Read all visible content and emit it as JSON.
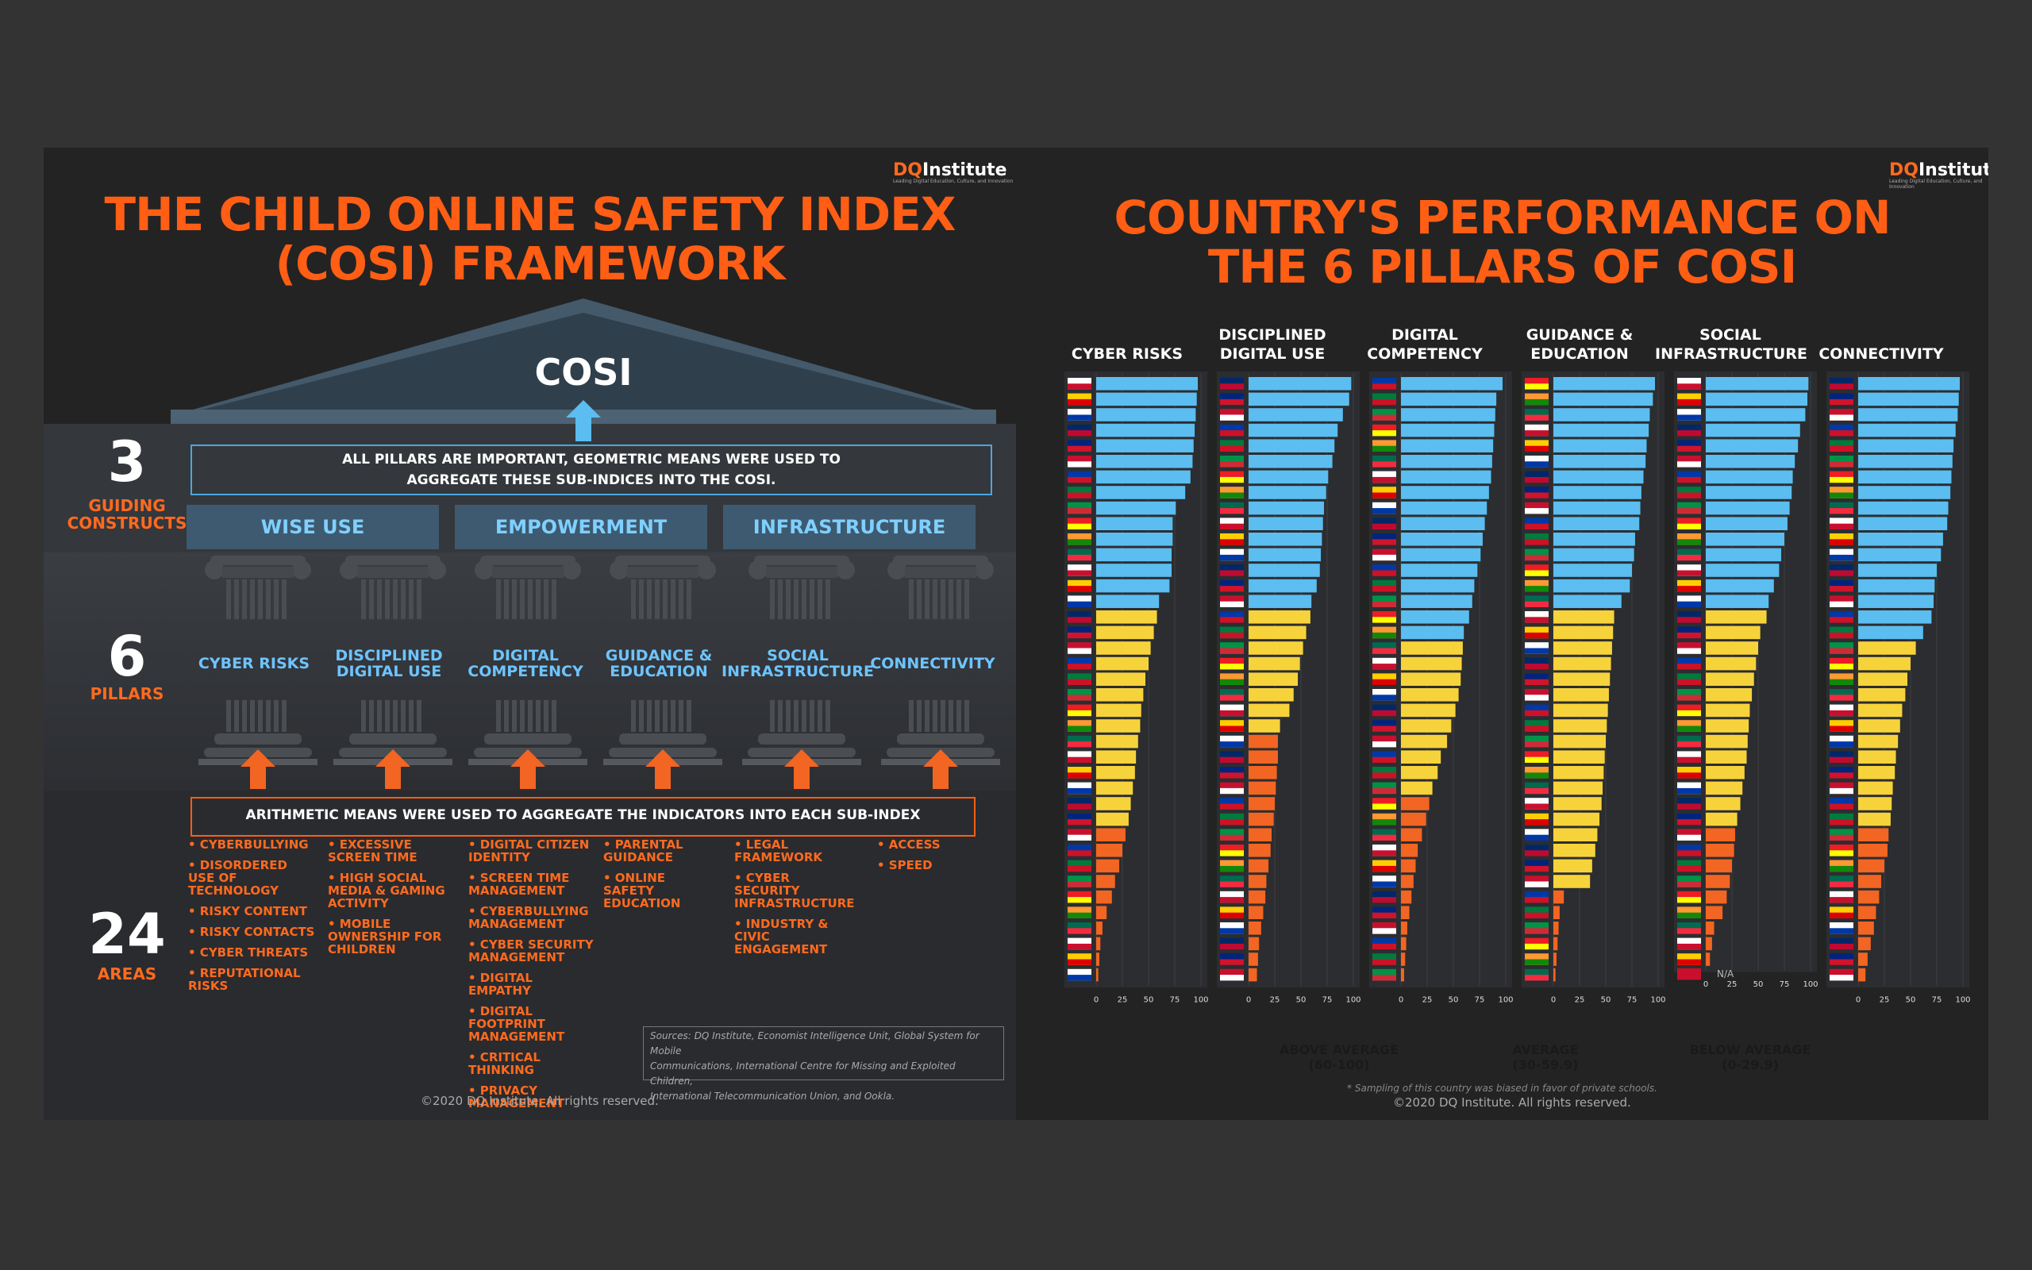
{
  "left": {
    "logo": {
      "brand": "DQ",
      "name": "Institute",
      "tagline": "Leading Digital Education, Culture, and Innovation"
    },
    "title_line1": "THE CHILD ONLINE SAFETY INDEX",
    "title_line2": "(COSI) FRAMEWORK",
    "roof_label": "COSI",
    "constructs": {
      "number": "3",
      "label_line1": "GUIDING",
      "label_line2": "CONSTRUCTS"
    },
    "pillars_count": {
      "number": "6",
      "label": "PILLARS"
    },
    "areas_count": {
      "number": "24",
      "label": "AREAS"
    },
    "top_note_line1": "ALL PILLARS ARE IMPORTANT, GEOMETRIC MEANS WERE USED TO",
    "top_note_line2": "AGGREGATE THESE SUB-INDICES INTO THE COSI.",
    "construct_names": [
      "WISE USE",
      "EMPOWERMENT",
      "INFRASTRUCTURE"
    ],
    "pillar_names": [
      [
        "CYBER RISKS",
        ""
      ],
      [
        "DISCIPLINED",
        "DIGITAL USE"
      ],
      [
        "DIGITAL",
        "COMPETENCY"
      ],
      [
        "GUIDANCE &",
        "EDUCATION"
      ],
      [
        "SOCIAL",
        "INFRASTRUCTURE"
      ],
      [
        "CONNECTIVITY",
        ""
      ]
    ],
    "bottom_note": "ARITHMETIC MEANS WERE USED TO AGGREGATE THE INDICATORS INTO EACH SUB-INDEX",
    "areas": [
      [
        "• CYBERBULLYING",
        "• DISORDERED USE OF TECHNOLOGY",
        "• RISKY CONTENT",
        "• RISKY CONTACTS",
        "• CYBER THREATS",
        "• REPUTATIONAL RISKS"
      ],
      [
        "• EXCESSIVE SCREEN TIME",
        "• HIGH SOCIAL MEDIA & GAMING ACTIVITY",
        "• MOBILE OWNERSHIP FOR CHILDREN"
      ],
      [
        "• DIGITAL CITIZEN IDENTITY",
        "• SCREEN TIME MANAGEMENT",
        "• CYBERBULLYING MANAGEMENT",
        "• CYBER SECURITY MANAGEMENT",
        "• DIGITAL EMPATHY",
        "• DIGITAL FOOTPRINT MANAGEMENT",
        "• CRITICAL THINKING",
        "• PRIVACY MANAGEMENT"
      ],
      [
        "• PARENTAL GUIDANCE",
        "• ONLINE SAFETY EDUCATION"
      ],
      [
        "• LEGAL FRAMEWORK",
        "• CYBER SECURITY INFRASTRUCTURE",
        "• INDUSTRY & CIVIC ENGAGEMENT"
      ],
      [
        "• ACCESS",
        "• SPEED"
      ]
    ],
    "sources_line1": "Sources: DQ Institute, Economist Intelligence Unit, Global System for Mobile",
    "sources_line2": "Communications, International Centre for Missing and Exploited Children,",
    "sources_line3": "International Telecommunication Union, and Ookla.",
    "copyright": "©2020 DQ Institute. All rights reserved."
  },
  "right": {
    "logo": {
      "brand": "DQ",
      "name": "Institute",
      "tagline": "Leading Digital Education, Culture, and Innovation"
    },
    "title_line1": "COUNTRY'S PERFORMANCE ON",
    "title_line2": "THE 6 PILLARS OF COSI",
    "legend": [
      {
        "line1": "ABOVE AVERAGE",
        "line2": "(60-100)",
        "color": "#5bbdf0"
      },
      {
        "line1": "AVERAGE",
        "line2": "(30-59.9)",
        "color": "#f7d33b"
      },
      {
        "line1": "BELOW AVERAGE",
        "line2": "(0-29.9)",
        "color": "#f26522"
      }
    ],
    "footnote": "* Sampling of this country was biased in favor of private schools.",
    "copyright": "©2020 DQ Institute. All rights reserved."
  },
  "colors": {
    "above": "#5bbdf0",
    "average": "#f7d33b",
    "below": "#f26522",
    "title": "#ff5e14"
  },
  "chart_data": [
    {
      "type": "bar",
      "title": "CYBER RISKS",
      "title_lines": [
        "CYBER RISKS"
      ],
      "xlim": [
        0,
        100
      ],
      "ticks": [
        0,
        25,
        50,
        75,
        100
      ],
      "values": [
        97,
        96,
        95,
        94,
        93,
        92,
        90,
        85,
        76,
        73,
        73,
        72,
        72,
        70,
        60,
        58,
        55,
        52,
        50,
        47,
        45,
        43,
        42,
        40,
        38,
        37,
        35,
        33,
        31,
        28,
        25,
        22,
        18,
        15,
        10,
        6,
        4,
        3,
        2
      ]
    },
    {
      "type": "bar",
      "title": "DISCIPLINED DIGITAL USE",
      "title_lines": [
        "DISCIPLINED",
        "DIGITAL USE"
      ],
      "xlim": [
        0,
        100
      ],
      "ticks": [
        0,
        25,
        50,
        75,
        100
      ],
      "values": [
        98,
        96,
        90,
        85,
        82,
        80,
        76,
        74,
        72,
        71,
        70,
        69,
        68,
        65,
        60,
        59,
        55,
        52,
        49,
        47,
        43,
        39,
        30,
        28,
        28,
        27,
        26,
        25,
        24,
        22,
        21,
        19,
        17,
        16,
        14,
        12,
        10,
        9,
        8
      ]
    },
    {
      "type": "bar",
      "title": "DIGITAL COMPETENCY",
      "title_lines": [
        "DIGITAL",
        "COMPETENCY"
      ],
      "xlim": [
        0,
        100
      ],
      "ticks": [
        0,
        25,
        50,
        75,
        100
      ],
      "values": [
        97,
        91,
        90,
        89,
        88,
        87,
        86,
        84,
        82,
        80,
        78,
        76,
        73,
        70,
        68,
        65,
        60,
        59,
        58,
        57,
        55,
        52,
        48,
        44,
        38,
        35,
        30,
        27,
        24,
        20,
        16,
        14,
        12,
        10,
        8,
        6,
        5,
        4,
        3
      ]
    },
    {
      "type": "bar",
      "title": "GUIDANCE & EDUCATION",
      "title_lines": [
        "GUIDANCE &",
        "EDUCATION"
      ],
      "xlim": [
        0,
        100
      ],
      "ticks": [
        0,
        25,
        50,
        75,
        100
      ],
      "values": [
        97,
        95,
        92,
        91,
        89,
        88,
        86,
        84,
        83,
        82,
        78,
        77,
        75,
        73,
        65,
        58,
        57,
        56,
        55,
        54,
        53,
        52,
        51,
        50,
        49,
        48,
        47,
        46,
        44,
        42,
        40,
        37,
        35,
        10,
        6,
        5,
        4,
        3,
        2
      ]
    },
    {
      "type": "bar",
      "title": "SOCIAL INFRASTRUCTURE",
      "title_lines": [
        "SOCIAL",
        "INFRASTRUCTURE"
      ],
      "xlim": [
        0,
        100
      ],
      "ticks": [
        0,
        25,
        50,
        75,
        100
      ],
      "values": [
        98,
        97,
        95,
        90,
        88,
        85,
        83,
        82,
        80,
        78,
        75,
        72,
        70,
        65,
        60,
        58,
        52,
        50,
        48,
        46,
        44,
        42,
        41,
        40,
        39,
        37,
        35,
        33,
        30,
        28,
        27,
        25,
        23,
        20,
        16,
        8,
        6,
        4
      ],
      "annotation": "N/A"
    },
    {
      "type": "bar",
      "title": "CONNECTIVITY",
      "title_lines": [
        "CONNECTIVITY"
      ],
      "xlim": [
        0,
        100
      ],
      "ticks": [
        0,
        25,
        50,
        75,
        100
      ],
      "values": [
        97,
        96,
        95,
        93,
        91,
        90,
        89,
        88,
        86,
        85,
        81,
        79,
        75,
        73,
        72,
        70,
        62,
        55,
        50,
        47,
        45,
        42,
        40,
        38,
        36,
        35,
        33,
        32,
        31,
        29,
        28,
        25,
        22,
        20,
        17,
        15,
        12,
        9,
        7
      ]
    }
  ]
}
